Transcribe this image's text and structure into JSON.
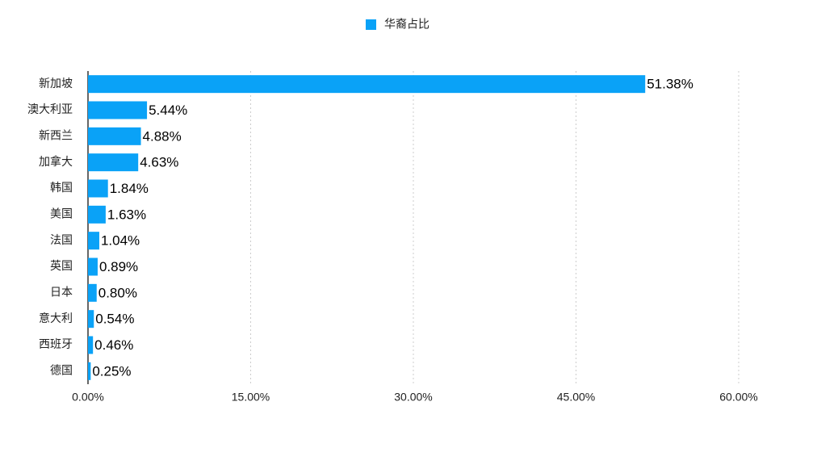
{
  "chart_data": {
    "type": "bar",
    "orientation": "horizontal",
    "categories": [
      "新加坡",
      "澳大利亚",
      "新西兰",
      "加拿大",
      "韩国",
      "美国",
      "法国",
      "英国",
      "日本",
      "意大利",
      "西班牙",
      "德国"
    ],
    "series": [
      {
        "name": "华裔占比",
        "color": "#0aa2f7",
        "values": [
          51.38,
          5.44,
          4.88,
          4.63,
          1.84,
          1.63,
          1.04,
          0.89,
          0.8,
          0.54,
          0.46,
          0.25
        ],
        "value_labels": [
          "51.38%",
          "5.44%",
          "4.88%",
          "4.63%",
          "1.84%",
          "1.63%",
          "1.04%",
          "0.89%",
          "0.80%",
          "0.54%",
          "0.46%",
          "0.25%"
        ]
      }
    ],
    "xlim": [
      0,
      60
    ],
    "xticks": [
      {
        "value": 0,
        "label": "0.00%"
      },
      {
        "value": 15,
        "label": "15.00%"
      },
      {
        "value": 30,
        "label": "30.00%"
      },
      {
        "value": 45,
        "label": "45.00%"
      },
      {
        "value": 60,
        "label": "60.00%"
      }
    ],
    "grid": true,
    "legend": "top"
  }
}
